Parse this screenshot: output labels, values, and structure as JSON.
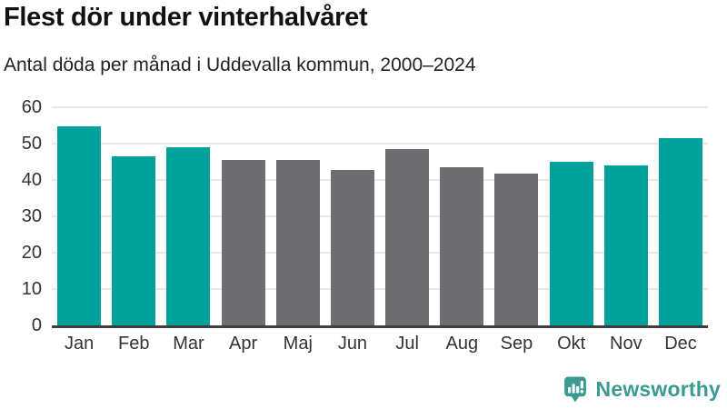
{
  "header": {
    "title": "Flest dör under vinterhalvåret",
    "subtitle": "Antal döda per månad i Uddevalla kommun, 2000–2024"
  },
  "chart_data": {
    "type": "bar",
    "title": "Flest dör under vinterhalvåret",
    "subtitle": "Antal döda per månad i Uddevalla kommun, 2000–2024",
    "categories": [
      "Jan",
      "Feb",
      "Mar",
      "Apr",
      "Maj",
      "Jun",
      "Jul",
      "Aug",
      "Sep",
      "Okt",
      "Nov",
      "Dec"
    ],
    "values": [
      54.7,
      46.6,
      48.9,
      45.4,
      45.4,
      42.8,
      48.4,
      43.4,
      41.8,
      44.9,
      44.1,
      51.6
    ],
    "bar_colors": [
      "winter",
      "winter",
      "winter",
      "summer",
      "summer",
      "summer",
      "summer",
      "summer",
      "summer",
      "winter",
      "winter",
      "winter"
    ],
    "colors": {
      "winter": "#00a39b",
      "summer": "#6e6d72"
    },
    "xlabel": "",
    "ylabel": "",
    "ylim": [
      0,
      60
    ],
    "yticks": [
      0,
      10,
      20,
      30,
      40,
      50,
      60
    ],
    "grid": true,
    "legend": false,
    "gridline_color": "#e8e8e8",
    "axis_line_color": "#3d3d3d"
  },
  "footer": {
    "brand": "Newsworthy",
    "logo_icon": "newsworthy-speech-bubble-bar-chart-icon",
    "brand_color": "#3a9b93"
  }
}
